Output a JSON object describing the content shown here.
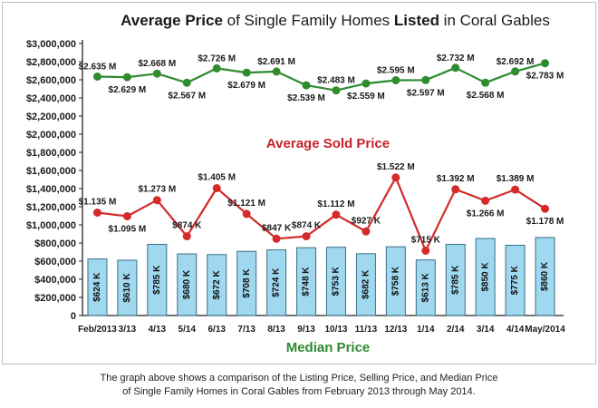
{
  "chart_data": {
    "type": "bar",
    "title": {
      "p1": "Average Price",
      "p2": " of Single Family Homes ",
      "p3": "Listed",
      "p4": " in Coral Gables"
    },
    "subtitle_sold": "Average Sold Price",
    "xlabel": "Median Price",
    "ylim": [
      0,
      3000000
    ],
    "yticks": [
      {
        "v": 0,
        "label": "0"
      },
      {
        "v": 200000,
        "label": "$200,000"
      },
      {
        "v": 400000,
        "label": "$400,000"
      },
      {
        "v": 600000,
        "label": "$600,000"
      },
      {
        "v": 800000,
        "label": "$800,000"
      },
      {
        "v": 1000000,
        "label": "$1,000,000"
      },
      {
        "v": 1200000,
        "label": "$1,200,000"
      },
      {
        "v": 1400000,
        "label": "$1,400,000"
      },
      {
        "v": 1600000,
        "label": "$1,600,000"
      },
      {
        "v": 1800000,
        "label": "$1,800,000"
      },
      {
        "v": 2000000,
        "label": "$2,000,000"
      },
      {
        "v": 2200000,
        "label": "$2,200,000"
      },
      {
        "v": 2400000,
        "label": "$2,400,000"
      },
      {
        "v": 2600000,
        "label": "$2,600,000"
      },
      {
        "v": 2800000,
        "label": "$2,800,000"
      },
      {
        "v": 3000000,
        "label": "$3,000,000"
      }
    ],
    "categories": [
      "Feb/2013",
      "3/13",
      "4/13",
      "5/14",
      "6/13",
      "7/13",
      "8/13",
      "9/13",
      "10/13",
      "11/13",
      "12/13",
      "1/14",
      "2/14",
      "3/14",
      "4/14",
      "May/2014"
    ],
    "series": [
      {
        "key": "listed",
        "type": "line",
        "color": "#2e8b2e",
        "values": [
          2635000,
          2629000,
          2668000,
          2567000,
          2726000,
          2679000,
          2691000,
          2539000,
          2483000,
          2559000,
          2595000,
          2597000,
          2732000,
          2568000,
          2692000,
          2783000
        ],
        "labels": [
          "$2.635 M",
          "$2.629 M",
          "$2.668 M",
          "$2.567 M",
          "$2.726 M",
          "$2.679 M",
          "$2.691 M",
          "$2.539 M",
          "$2.483 M",
          "$2.559 M",
          "$2.595 M",
          "$2.597 M",
          "$2.732 M",
          "$2.568 M",
          "$2.692 M",
          "$2.783 M"
        ]
      },
      {
        "key": "sold",
        "type": "line",
        "color": "#d42a2a",
        "values": [
          1135000,
          1095000,
          1273000,
          874000,
          1405000,
          1121000,
          847000,
          874000,
          1112000,
          927000,
          1522000,
          715000,
          1392000,
          1266000,
          1389000,
          1178000
        ],
        "labels": [
          "$1.135 M",
          "$1.095 M",
          "$1.273 M",
          "$874 K",
          "$1.405 M",
          "$1.121 M",
          "$847 K",
          "$874 K",
          "$1.112 M",
          "$927 K",
          "$1.522 M",
          "$715 K",
          "$1.392 M",
          "$1.266 M",
          "$1.389 M",
          "$1.178 M"
        ]
      },
      {
        "key": "median",
        "type": "bar",
        "color": "#9fd8ef",
        "values": [
          624000,
          610000,
          785000,
          680000,
          672000,
          708000,
          724000,
          748000,
          753000,
          682000,
          758000,
          613000,
          785000,
          850000,
          775000,
          860000
        ],
        "labels": [
          "$624 K",
          "$610 K",
          "$785 K",
          "$680 K",
          "$672 K",
          "$708 K",
          "$724 K",
          "$748 K",
          "$753 K",
          "$682 K",
          "$758 K",
          "$613 K",
          "$785 K",
          "$850 K",
          "$775 K",
          "$860 K"
        ]
      }
    ],
    "colors": {
      "title": "#1a1a1a",
      "sold_title": "#c8202a",
      "median_title": "#2e8b2e",
      "bar_stroke": "#3a6f87"
    }
  },
  "caption": {
    "line1": "The graph above shows a comparison of the Listing Price, Selling Price, and Median Price",
    "line2": "of Single Family Homes in Coral Gables from February 2013 through May 2014."
  }
}
